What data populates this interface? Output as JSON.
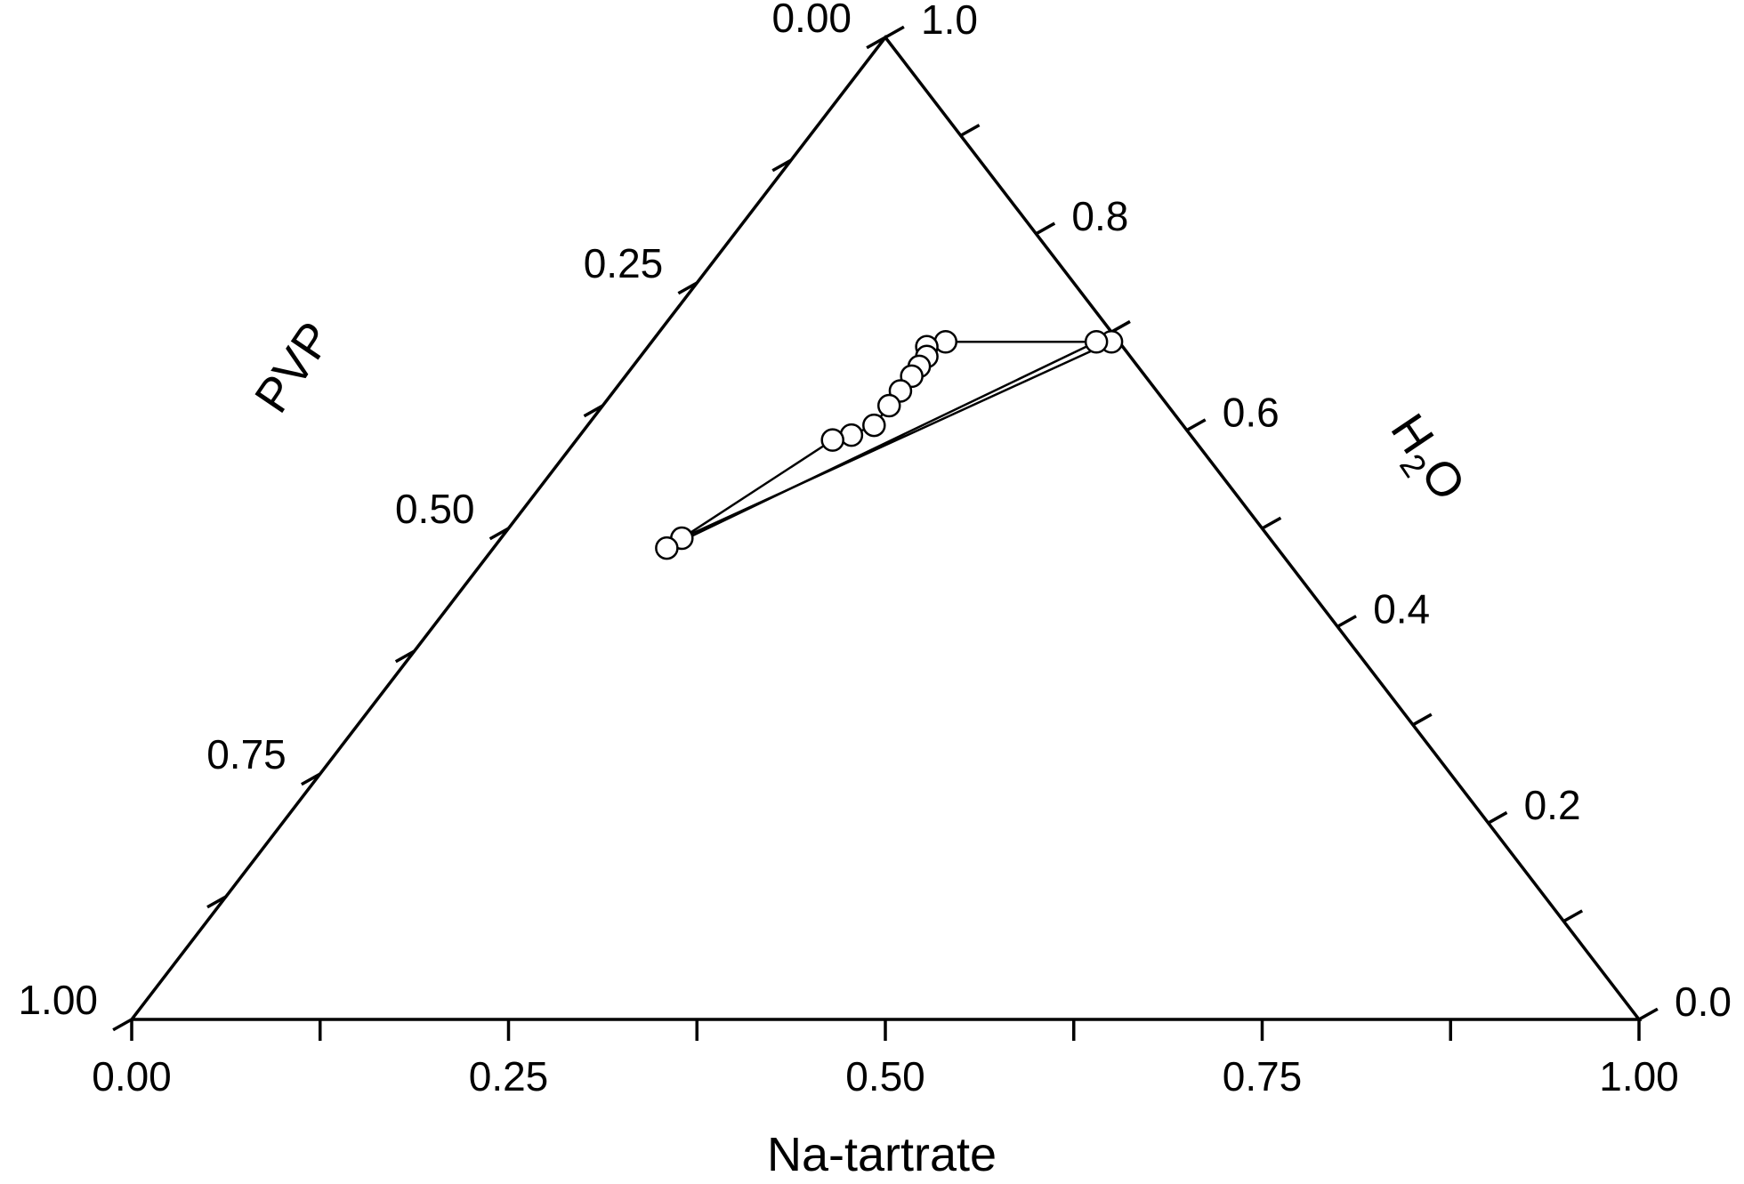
{
  "chart_data": {
    "type": "scatter",
    "subtype": "ternary",
    "axes": {
      "bottom": {
        "label": "Na-tartrate",
        "ticks": [
          0,
          0.125,
          0.25,
          0.375,
          0.5,
          0.625,
          0.75,
          0.875,
          1.0
        ],
        "tick_labels": [
          "0.00",
          "0.25",
          "0.50",
          "0.75",
          "1.00"
        ]
      },
      "left": {
        "label": "PVP",
        "ticks": [
          0,
          0.125,
          0.25,
          0.375,
          0.5,
          0.625,
          0.75,
          0.875,
          1.0
        ],
        "tick_labels": [
          "0.00",
          "0.25",
          "0.50",
          "0.75",
          "1.00"
        ]
      },
      "right": {
        "label_main": "H",
        "label_sub": "2",
        "label_end": "O",
        "ticks": [
          0,
          0.1,
          0.2,
          0.3,
          0.4,
          0.5,
          0.6,
          0.7,
          0.8,
          0.9,
          1.0
        ],
        "tick_labels": [
          "0.0",
          "0.2",
          "0.4",
          "0.6",
          "0.8",
          "1.0"
        ]
      }
    },
    "series": [
      {
        "marker": "open-circle",
        "points": [
          {
            "h2o": 0.69,
            "salt": 0.305
          },
          {
            "h2o": 0.69,
            "salt": 0.295
          },
          {
            "h2o": 0.69,
            "salt": 0.195
          },
          {
            "h2o": 0.685,
            "salt": 0.185
          },
          {
            "h2o": 0.675,
            "salt": 0.19
          },
          {
            "h2o": 0.665,
            "salt": 0.19
          },
          {
            "h2o": 0.655,
            "salt": 0.19
          },
          {
            "h2o": 0.64,
            "salt": 0.19
          },
          {
            "h2o": 0.625,
            "salt": 0.19
          },
          {
            "h2o": 0.605,
            "salt": 0.19
          },
          {
            "h2o": 0.595,
            "salt": 0.18
          },
          {
            "h2o": 0.59,
            "salt": 0.17
          },
          {
            "h2o": 0.49,
            "salt": 0.12
          },
          {
            "h2o": 0.48,
            "salt": 0.115
          }
        ],
        "tie_lines": [
          [
            {
              "h2o": 0.49,
              "salt": 0.12
            },
            {
              "h2o": 0.69,
              "salt": 0.305
            }
          ],
          [
            {
              "h2o": 0.48,
              "salt": 0.115
            },
            {
              "h2o": 0.69,
              "salt": 0.295
            }
          ]
        ]
      }
    ]
  }
}
